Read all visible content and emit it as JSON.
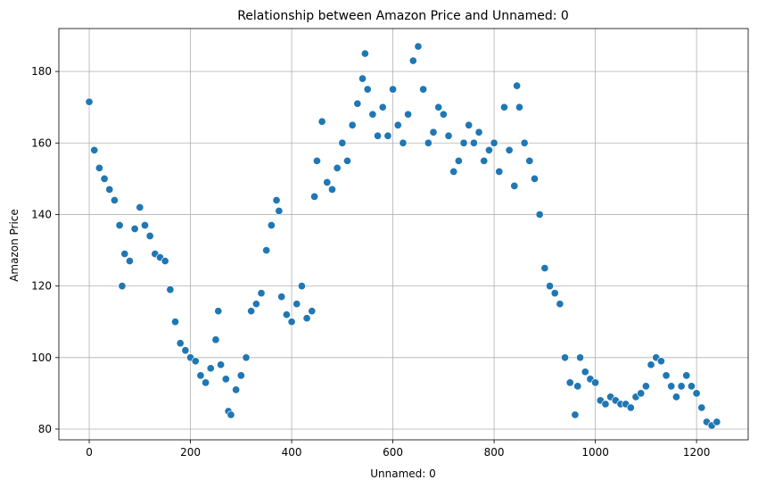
{
  "chart_data": {
    "type": "scatter",
    "title": "Relationship between Amazon Price and Unnamed: 0",
    "xlabel": "Unnamed: 0",
    "ylabel": "Amazon Price",
    "xlim": [
      -60,
      1302
    ],
    "ylim": [
      77,
      192
    ],
    "xticks": [
      0,
      200,
      400,
      600,
      800,
      1000,
      1200
    ],
    "yticks": [
      80,
      100,
      120,
      140,
      160,
      180
    ],
    "grid": true,
    "colors": {
      "marker": "#1f77b4",
      "marker_edge": "#ffffff",
      "grid": "#b0b0b0"
    },
    "series": [
      {
        "x": [
          0,
          10,
          20,
          30,
          40,
          50,
          60,
          65,
          70,
          80,
          90,
          100,
          110,
          120,
          130,
          140,
          150,
          160,
          170,
          180,
          190,
          200,
          210,
          220,
          230,
          240,
          250,
          255,
          260,
          270,
          275,
          280,
          290,
          300,
          310,
          320,
          330,
          340,
          350,
          360,
          370,
          375,
          380,
          390,
          400,
          410,
          420,
          430,
          440,
          445,
          450,
          460,
          470,
          480,
          490,
          500,
          510,
          520,
          530,
          540,
          545,
          550,
          560,
          570,
          580,
          590,
          600,
          610,
          620,
          630,
          640,
          650,
          660,
          670,
          680,
          690,
          700,
          710,
          720,
          730,
          740,
          750,
          760,
          770,
          780,
          790,
          800,
          810,
          820,
          830,
          840,
          845,
          850,
          860,
          870,
          880,
          890,
          900,
          910,
          920,
          930,
          940,
          950,
          960,
          965,
          970,
          980,
          990,
          1000,
          1010,
          1020,
          1030,
          1040,
          1050,
          1060,
          1070,
          1080,
          1090,
          1100,
          1110,
          1120,
          1130,
          1140,
          1150,
          1160,
          1170,
          1180,
          1190,
          1200,
          1210,
          1220,
          1230,
          1240
        ],
        "y": [
          171.5,
          158,
          153,
          150,
          147,
          144,
          137,
          120,
          129,
          127,
          136,
          142,
          137,
          134,
          129,
          128,
          127,
          119,
          110,
          104,
          102,
          100,
          99,
          95,
          93,
          97,
          105,
          113,
          98,
          94,
          85,
          84,
          91,
          95,
          100,
          113,
          115,
          118,
          130,
          137,
          144,
          141,
          117,
          112,
          110,
          115,
          120,
          111,
          113,
          145,
          155,
          166,
          149,
          147,
          153,
          160,
          155,
          165,
          171,
          178,
          185,
          175,
          168,
          162,
          170,
          162,
          175,
          165,
          160,
          168,
          183,
          187,
          175,
          160,
          163,
          170,
          168,
          162,
          152,
          155,
          160,
          165,
          160,
          163,
          155,
          158,
          160,
          152,
          170,
          158,
          148,
          176,
          170,
          160,
          155,
          150,
          140,
          125,
          120,
          118,
          115,
          100,
          93,
          84,
          92,
          100,
          96,
          94,
          93,
          88,
          87,
          89,
          88,
          87,
          87,
          86,
          89,
          90,
          92,
          98,
          100,
          99,
          95,
          92,
          89,
          92,
          95,
          92,
          90,
          86,
          82,
          81,
          82
        ]
      }
    ]
  }
}
